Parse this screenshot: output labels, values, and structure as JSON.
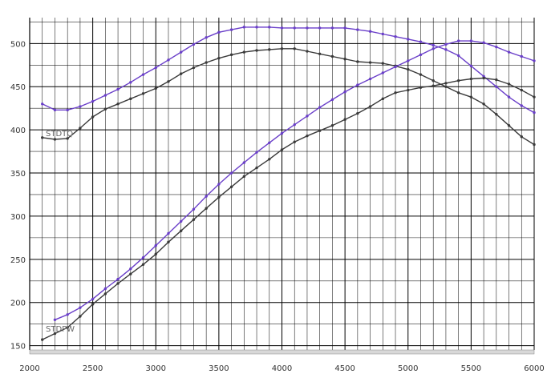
{
  "chart_data": {
    "type": "line",
    "title": "",
    "xlabel": "",
    "ylabel": "",
    "xlim": [
      2000,
      6000
    ],
    "ylim": [
      145,
      530
    ],
    "grid": true,
    "x_ticks": [
      "2000",
      "2500",
      "3000",
      "3500",
      "4000",
      "4500",
      "5000",
      "5500",
      "6000"
    ],
    "x_tick_values": [
      2000,
      2500,
      3000,
      3500,
      4000,
      4500,
      5000,
      5500,
      6000
    ],
    "y_ticks": [
      "150",
      "200",
      "250",
      "300",
      "350",
      "400",
      "450",
      "500"
    ],
    "y_tick_values": [
      150,
      200,
      250,
      300,
      350,
      400,
      450,
      500
    ],
    "annotations": {
      "stdtq": "STDTQ",
      "stdpw": "STDPW"
    },
    "colors": {
      "purple": "#6a3fc9",
      "black": "#3a3a3a",
      "grid": "#000000",
      "axis_bar": "#d8d8d8"
    },
    "series": [
      {
        "color": "purple",
        "x": [
          2100,
          2200,
          2300,
          2400,
          2500,
          2600,
          2700,
          2800,
          2900,
          3000,
          3100,
          3200,
          3300,
          3400,
          3500,
          3600,
          3700,
          3800,
          3900,
          4000,
          4100,
          4200,
          4300,
          4400,
          4500,
          4600,
          4700,
          4800,
          4900,
          5000,
          5100,
          5200,
          5300,
          5400,
          5500,
          5600,
          5700,
          5800,
          5900,
          6000
        ],
        "values": [
          430,
          423,
          423,
          427,
          433,
          440,
          447,
          455,
          464,
          472,
          481,
          490,
          499,
          507,
          513,
          516,
          519,
          519,
          519,
          518,
          518,
          518,
          518,
          518,
          518,
          516,
          514,
          511,
          508,
          505,
          502,
          498,
          493,
          486,
          474,
          462,
          450,
          438,
          428,
          420
        ]
      },
      {
        "color": "black",
        "x": [
          2100,
          2200,
          2300,
          2400,
          2500,
          2600,
          2700,
          2800,
          2900,
          3000,
          3100,
          3200,
          3300,
          3400,
          3500,
          3600,
          3700,
          3800,
          3900,
          4000,
          4100,
          4200,
          4300,
          4400,
          4500,
          4600,
          4700,
          4800,
          4900,
          5000,
          5100,
          5200,
          5300,
          5400,
          5500,
          5600,
          5700,
          5800,
          5900,
          6000
        ],
        "values": [
          391,
          389,
          390,
          402,
          415,
          424,
          430,
          436,
          442,
          448,
          456,
          465,
          472,
          478,
          483,
          487,
          490,
          492,
          493,
          494,
          494,
          491,
          488,
          485,
          482,
          479,
          478,
          477,
          474,
          470,
          464,
          457,
          450,
          443,
          438,
          430,
          418,
          405,
          392,
          383
        ]
      },
      {
        "color": "purple",
        "x": [
          2200,
          2300,
          2400,
          2500,
          2600,
          2700,
          2800,
          2900,
          3000,
          3100,
          3200,
          3300,
          3400,
          3500,
          3600,
          3700,
          3800,
          3900,
          4000,
          4100,
          4200,
          4300,
          4400,
          4500,
          4600,
          4700,
          4800,
          4900,
          5000,
          5100,
          5200,
          5300,
          5400,
          5500,
          5600,
          5700,
          5800,
          5900,
          6000
        ],
        "values": [
          180,
          186,
          194,
          204,
          216,
          227,
          239,
          252,
          266,
          280,
          294,
          308,
          323,
          337,
          350,
          362,
          374,
          385,
          396,
          406,
          416,
          426,
          435,
          444,
          452,
          459,
          466,
          473,
          480,
          487,
          494,
          499,
          503,
          503,
          501,
          496,
          490,
          485,
          480
        ]
      },
      {
        "color": "black",
        "x": [
          2100,
          2200,
          2300,
          2400,
          2500,
          2600,
          2700,
          2800,
          2900,
          3000,
          3100,
          3200,
          3300,
          3400,
          3500,
          3600,
          3700,
          3800,
          3900,
          4000,
          4100,
          4200,
          4300,
          4400,
          4500,
          4600,
          4700,
          4800,
          4900,
          5000,
          5100,
          5200,
          5300,
          5400,
          5500,
          5600,
          5700,
          5800,
          5900,
          6000
        ],
        "values": [
          157,
          164,
          171,
          184,
          198,
          210,
          222,
          233,
          244,
          256,
          270,
          283,
          296,
          309,
          322,
          334,
          346,
          356,
          366,
          377,
          386,
          393,
          399,
          405,
          412,
          419,
          427,
          436,
          443,
          446,
          449,
          451,
          454,
          457,
          459,
          460,
          458,
          453,
          446,
          438
        ]
      }
    ]
  }
}
